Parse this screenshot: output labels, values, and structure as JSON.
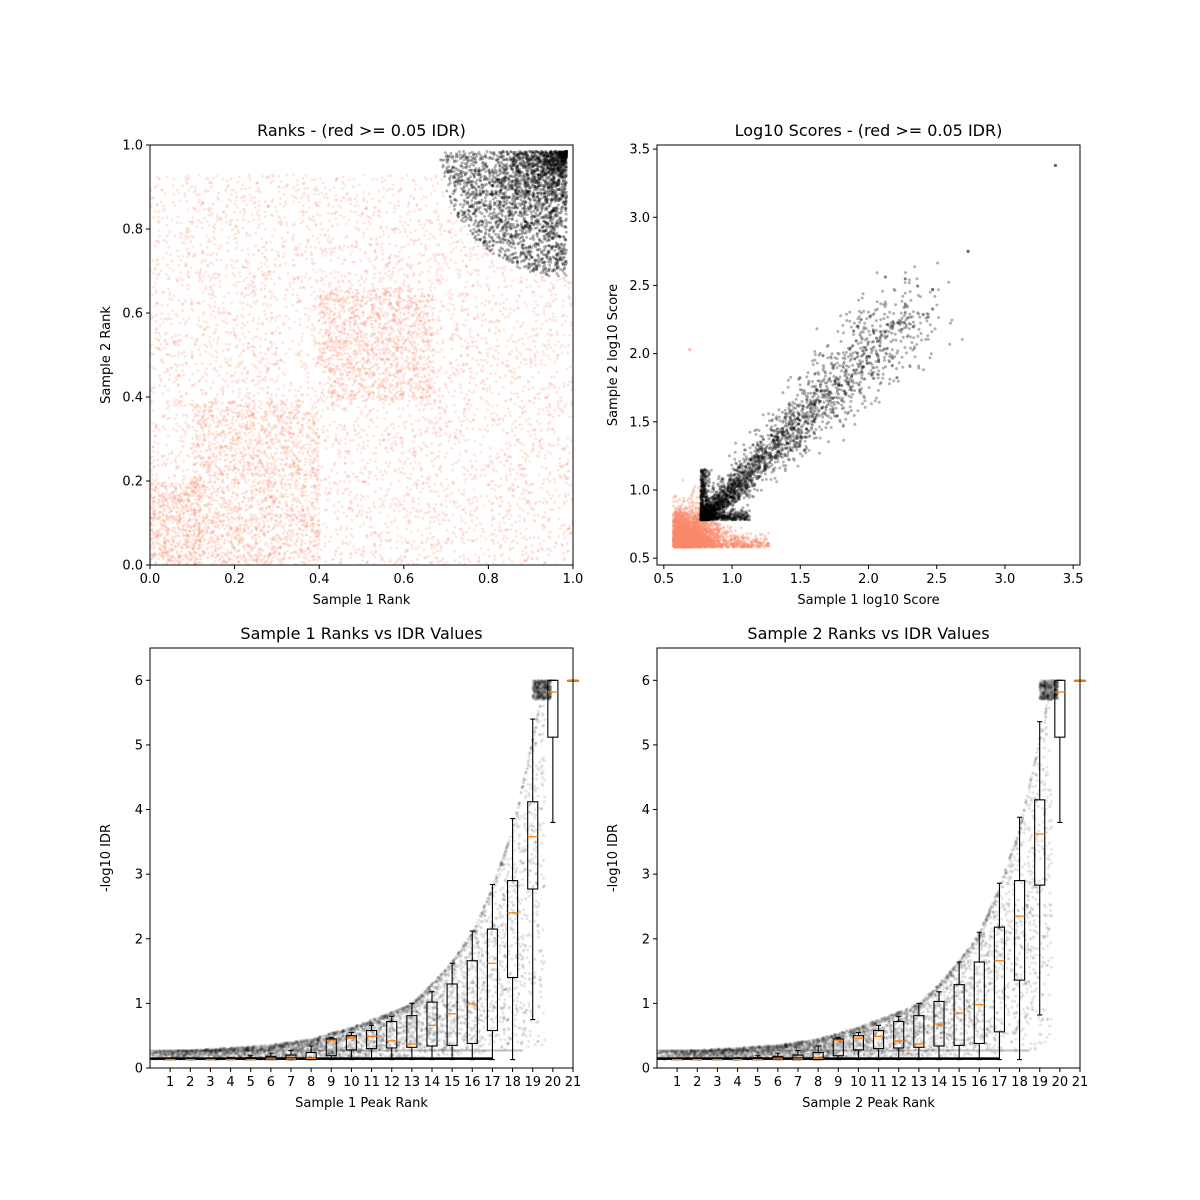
{
  "figure": {
    "colors": {
      "low_idr": "#fa8a6a",
      "high_idr": "#000000",
      "median": "#ff7f0e",
      "box": "#000000"
    }
  },
  "chart_data": [
    {
      "type": "scatter",
      "title": "Ranks - (red >= 0.05 IDR)",
      "xlabel": "Sample 1 Rank",
      "ylabel": "Sample 2 Rank",
      "xlim": [
        0,
        1
      ],
      "ylim": [
        0,
        1
      ],
      "xticks": [
        0.0,
        0.2,
        0.4,
        0.6,
        0.8,
        1.0
      ],
      "yticks": [
        0.0,
        0.2,
        0.4,
        0.6,
        0.8,
        1.0
      ],
      "xtick_labels": [
        "0.0",
        "0.2",
        "0.4",
        "0.6",
        "0.8",
        "1.0"
      ],
      "ytick_labels": [
        "0.0",
        "0.2",
        "0.4",
        "0.6",
        "0.8",
        "1.0"
      ],
      "grid": false,
      "series": [
        {
          "color_key": "low_idr",
          "description_points": "dense uniform cloud over [0,1]x[0,0.93], denser blocks [0.1,0.4]x[0,0.39] and [0.4,0.67]x[0.39,0.66]"
        },
        {
          "color_key": "high_idr",
          "center": [
            0.985,
            0.985
          ],
          "radius": 0.3
        }
      ]
    },
    {
      "type": "scatter",
      "title": "Log10 Scores - (red >= 0.05 IDR)",
      "xlabel": "Sample 1 log10 Score",
      "ylabel": "Sample 2 log10 Score",
      "xlim": [
        0.45,
        3.55
      ],
      "ylim": [
        0.45,
        3.53
      ],
      "xticks": [
        0.5,
        1.0,
        1.5,
        2.0,
        2.5,
        3.0,
        3.5
      ],
      "yticks": [
        0.5,
        1.0,
        1.5,
        2.0,
        2.5,
        3.0,
        3.5
      ],
      "xtick_labels": [
        "0.5",
        "1.0",
        "1.5",
        "2.0",
        "2.5",
        "3.0",
        "3.5"
      ],
      "ytick_labels": [
        "0.5",
        "1.0",
        "1.5",
        "2.0",
        "2.5",
        "3.0",
        "3.5"
      ],
      "grid": false,
      "series": [
        {
          "color_key": "low_idr",
          "x_range": [
            0.57,
            1.3
          ],
          "y_range": [
            0.58,
            1.1
          ]
        },
        {
          "color_key": "high_idr",
          "x_range": [
            0.76,
            2.35
          ],
          "y_range": [
            0.77,
            2.35
          ],
          "outliers": [
            [
              2.47,
              2.47
            ],
            [
              2.73,
              2.75
            ],
            [
              3.37,
              3.38
            ],
            [
              0.69,
              2.03
            ]
          ]
        }
      ]
    },
    {
      "type": "box",
      "title": "Sample 1 Ranks vs IDR Values",
      "xlabel": "Sample 1 Peak Rank",
      "ylabel": "-log10 IDR",
      "xlim": [
        0,
        21
      ],
      "ylim": [
        0,
        6.5
      ],
      "xtick_labels": [
        "1",
        "2",
        "3",
        "4",
        "5",
        "6",
        "7",
        "8",
        "9",
        "10",
        "11",
        "12",
        "13",
        "14",
        "15",
        "16",
        "17",
        "18",
        "19",
        "20",
        "21"
      ],
      "ytick_labels": [
        "0",
        "1",
        "2",
        "3",
        "4",
        "5",
        "6"
      ],
      "yticks": [
        0,
        1,
        2,
        3,
        4,
        5,
        6
      ],
      "grid": false,
      "boxes": [
        {
          "pos": 1,
          "whislo": 0.13,
          "q1": 0.13,
          "med": 0.13,
          "q3": 0.14,
          "whishi": 0.15
        },
        {
          "pos": 2,
          "whislo": 0.13,
          "q1": 0.13,
          "med": 0.13,
          "q3": 0.14,
          "whishi": 0.15
        },
        {
          "pos": 3,
          "whislo": 0.13,
          "q1": 0.13,
          "med": 0.13,
          "q3": 0.14,
          "whishi": 0.15
        },
        {
          "pos": 4,
          "whislo": 0.13,
          "q1": 0.13,
          "med": 0.13,
          "q3": 0.14,
          "whishi": 0.16
        },
        {
          "pos": 5,
          "whislo": 0.13,
          "q1": 0.13,
          "med": 0.13,
          "q3": 0.16,
          "whishi": 0.19
        },
        {
          "pos": 6,
          "whislo": 0.13,
          "q1": 0.13,
          "med": 0.14,
          "q3": 0.18,
          "whishi": 0.23
        },
        {
          "pos": 7,
          "whislo": 0.13,
          "q1": 0.13,
          "med": 0.14,
          "q3": 0.2,
          "whishi": 0.27
        },
        {
          "pos": 8,
          "whislo": 0.13,
          "q1": 0.13,
          "med": 0.15,
          "q3": 0.24,
          "whishi": 0.34
        },
        {
          "pos": 9,
          "whislo": 0.13,
          "q1": 0.19,
          "med": 0.43,
          "q3": 0.45,
          "whishi": 0.47
        },
        {
          "pos": 10,
          "whislo": 0.13,
          "q1": 0.28,
          "med": 0.46,
          "q3": 0.5,
          "whishi": 0.55
        },
        {
          "pos": 11,
          "whislo": 0.13,
          "q1": 0.3,
          "med": 0.49,
          "q3": 0.58,
          "whishi": 0.66
        },
        {
          "pos": 12,
          "whislo": 0.13,
          "q1": 0.31,
          "med": 0.42,
          "q3": 0.72,
          "whishi": 0.8
        },
        {
          "pos": 13,
          "whislo": 0.13,
          "q1": 0.32,
          "med": 0.37,
          "q3": 0.81,
          "whishi": 1.0
        },
        {
          "pos": 14,
          "whislo": 0.13,
          "q1": 0.34,
          "med": 0.66,
          "q3": 1.02,
          "whishi": 1.18
        },
        {
          "pos": 15,
          "whislo": 0.13,
          "q1": 0.35,
          "med": 0.84,
          "q3": 1.3,
          "whishi": 1.62
        },
        {
          "pos": 16,
          "whislo": 0.13,
          "q1": 0.38,
          "med": 0.99,
          "q3": 1.66,
          "whishi": 2.12
        },
        {
          "pos": 17,
          "whislo": 0.13,
          "q1": 0.58,
          "med": 1.62,
          "q3": 2.15,
          "whishi": 2.84
        },
        {
          "pos": 18,
          "whislo": 0.13,
          "q1": 1.4,
          "med": 2.4,
          "q3": 2.9,
          "whishi": 3.86
        },
        {
          "pos": 19,
          "whislo": 0.75,
          "q1": 2.77,
          "med": 3.58,
          "q3": 4.12,
          "whishi": 5.4
        },
        {
          "pos": 20,
          "whislo": 3.8,
          "q1": 5.12,
          "med": 5.82,
          "q3": 6.0,
          "whishi": 6.0
        },
        {
          "pos": 21,
          "whislo": 6.0,
          "q1": 6.0,
          "med": 6.0,
          "q3": 6.0,
          "whishi": 6.0
        }
      ],
      "scatter_envelope": {
        "note": "black transparent points from x=0 to x=21 following the upper curve",
        "upper": [
          [
            0,
            0.26
          ],
          [
            2,
            0.28
          ],
          [
            4,
            0.31
          ],
          [
            6,
            0.36
          ],
          [
            8,
            0.45
          ],
          [
            10,
            0.63
          ],
          [
            12,
            0.87
          ],
          [
            13,
            1.0
          ],
          [
            14,
            1.3
          ],
          [
            15,
            1.65
          ],
          [
            16,
            2.1
          ],
          [
            17,
            2.8
          ],
          [
            18,
            3.7
          ],
          [
            19,
            5.1
          ],
          [
            19.6,
            6.0
          ]
        ]
      }
    },
    {
      "type": "box",
      "title": "Sample 2 Ranks vs IDR Values",
      "xlabel": "Sample 2 Peak Rank",
      "ylabel": "-log10 IDR",
      "xlim": [
        0,
        21
      ],
      "ylim": [
        0,
        6.5
      ],
      "xtick_labels": [
        "1",
        "2",
        "3",
        "4",
        "5",
        "6",
        "7",
        "8",
        "9",
        "10",
        "11",
        "12",
        "13",
        "14",
        "15",
        "16",
        "17",
        "18",
        "19",
        "20",
        "21"
      ],
      "ytick_labels": [
        "0",
        "1",
        "2",
        "3",
        "4",
        "5",
        "6"
      ],
      "yticks": [
        0,
        1,
        2,
        3,
        4,
        5,
        6
      ],
      "grid": false,
      "boxes": [
        {
          "pos": 1,
          "whislo": 0.13,
          "q1": 0.13,
          "med": 0.13,
          "q3": 0.14,
          "whishi": 0.15
        },
        {
          "pos": 2,
          "whislo": 0.13,
          "q1": 0.13,
          "med": 0.13,
          "q3": 0.14,
          "whishi": 0.15
        },
        {
          "pos": 3,
          "whislo": 0.13,
          "q1": 0.13,
          "med": 0.13,
          "q3": 0.14,
          "whishi": 0.15
        },
        {
          "pos": 4,
          "whislo": 0.13,
          "q1": 0.13,
          "med": 0.13,
          "q3": 0.14,
          "whishi": 0.16
        },
        {
          "pos": 5,
          "whislo": 0.13,
          "q1": 0.13,
          "med": 0.13,
          "q3": 0.16,
          "whishi": 0.19
        },
        {
          "pos": 6,
          "whislo": 0.13,
          "q1": 0.13,
          "med": 0.14,
          "q3": 0.18,
          "whishi": 0.23
        },
        {
          "pos": 7,
          "whislo": 0.13,
          "q1": 0.13,
          "med": 0.14,
          "q3": 0.2,
          "whishi": 0.27
        },
        {
          "pos": 8,
          "whislo": 0.13,
          "q1": 0.13,
          "med": 0.15,
          "q3": 0.24,
          "whishi": 0.34
        },
        {
          "pos": 9,
          "whislo": 0.13,
          "q1": 0.19,
          "med": 0.43,
          "q3": 0.45,
          "whishi": 0.47
        },
        {
          "pos": 10,
          "whislo": 0.13,
          "q1": 0.28,
          "med": 0.46,
          "q3": 0.5,
          "whishi": 0.55
        },
        {
          "pos": 11,
          "whislo": 0.13,
          "q1": 0.3,
          "med": 0.49,
          "q3": 0.58,
          "whishi": 0.66
        },
        {
          "pos": 12,
          "whislo": 0.13,
          "q1": 0.31,
          "med": 0.42,
          "q3": 0.72,
          "whishi": 0.8
        },
        {
          "pos": 13,
          "whislo": 0.13,
          "q1": 0.32,
          "med": 0.37,
          "q3": 0.81,
          "whishi": 1.0
        },
        {
          "pos": 14,
          "whislo": 0.13,
          "q1": 0.34,
          "med": 0.68,
          "q3": 1.03,
          "whishi": 1.18
        },
        {
          "pos": 15,
          "whislo": 0.13,
          "q1": 0.35,
          "med": 0.85,
          "q3": 1.29,
          "whishi": 1.64
        },
        {
          "pos": 16,
          "whislo": 0.13,
          "q1": 0.38,
          "med": 0.98,
          "q3": 1.64,
          "whishi": 2.1
        },
        {
          "pos": 17,
          "whislo": 0.13,
          "q1": 0.56,
          "med": 1.66,
          "q3": 2.18,
          "whishi": 2.86
        },
        {
          "pos": 18,
          "whislo": 0.13,
          "q1": 1.36,
          "med": 2.35,
          "q3": 2.9,
          "whishi": 3.88
        },
        {
          "pos": 19,
          "whislo": 0.82,
          "q1": 2.83,
          "med": 3.62,
          "q3": 4.15,
          "whishi": 5.36
        },
        {
          "pos": 20,
          "whislo": 3.8,
          "q1": 5.12,
          "med": 5.82,
          "q3": 6.0,
          "whishi": 6.0
        },
        {
          "pos": 21,
          "whislo": 6.0,
          "q1": 6.0,
          "med": 6.0,
          "q3": 6.0,
          "whishi": 6.0
        }
      ],
      "scatter_envelope": {
        "note": "black transparent points from x=0 to x=21 following the upper curve",
        "upper": [
          [
            0,
            0.26
          ],
          [
            2,
            0.28
          ],
          [
            4,
            0.31
          ],
          [
            6,
            0.36
          ],
          [
            8,
            0.45
          ],
          [
            10,
            0.63
          ],
          [
            12,
            0.87
          ],
          [
            13,
            1.0
          ],
          [
            14,
            1.3
          ],
          [
            15,
            1.65
          ],
          [
            16,
            2.1
          ],
          [
            17,
            2.8
          ],
          [
            18,
            3.7
          ],
          [
            19,
            5.1
          ],
          [
            19.6,
            6.0
          ]
        ]
      }
    }
  ]
}
